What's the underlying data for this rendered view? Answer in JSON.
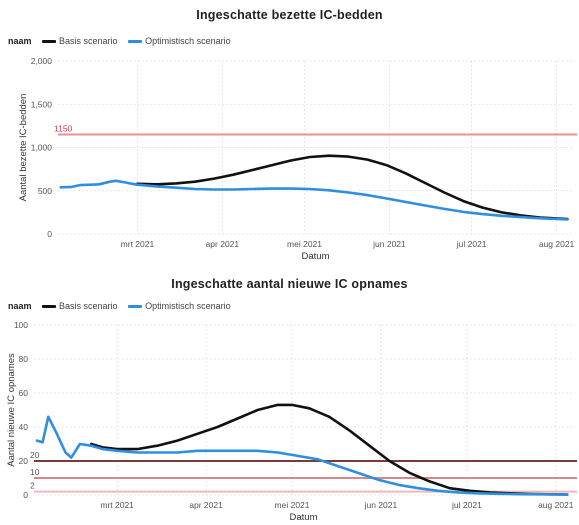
{
  "chart_data": [
    {
      "type": "line",
      "title": "Ingeschatte bezette IC-bedden",
      "legend_title": "naam",
      "legend_position": "top-left",
      "xlabel": "Datum",
      "ylabel": "Aantal bezette IC-bedden",
      "ylim": [
        0,
        2000
      ],
      "xlim": [
        "2021-01-31",
        "2021-08-07"
      ],
      "y_ticks": [
        {
          "value": 0,
          "label": "0"
        },
        {
          "value": 500,
          "label": "500"
        },
        {
          "value": 1000,
          "label": "1,000"
        },
        {
          "value": 1500,
          "label": "1,500"
        },
        {
          "value": 2000,
          "label": "2,000"
        }
      ],
      "x_ticks": [
        {
          "date": "2021-03-01",
          "label": "mrt 2021"
        },
        {
          "date": "2021-04-01",
          "label": "apr 2021"
        },
        {
          "date": "2021-05-01",
          "label": "mei 2021"
        },
        {
          "date": "2021-06-01",
          "label": "jun 2021"
        },
        {
          "date": "2021-07-01",
          "label": "jul 2021"
        },
        {
          "date": "2021-08-01",
          "label": "aug 2021"
        }
      ],
      "grid": true,
      "reference_lines": [
        {
          "value": 1150,
          "label": "1150",
          "color": "#e8918f",
          "label_color": "#c8385a"
        }
      ],
      "series": [
        {
          "name": "Basis scenario",
          "color": "#111111",
          "points": [
            [
              "2021-03-01",
              580
            ],
            [
              "2021-03-08",
              575
            ],
            [
              "2021-03-15",
              585
            ],
            [
              "2021-03-22",
              605
            ],
            [
              "2021-03-29",
              640
            ],
            [
              "2021-04-05",
              685
            ],
            [
              "2021-04-12",
              740
            ],
            [
              "2021-04-19",
              795
            ],
            [
              "2021-04-26",
              850
            ],
            [
              "2021-05-03",
              890
            ],
            [
              "2021-05-10",
              905
            ],
            [
              "2021-05-17",
              895
            ],
            [
              "2021-05-24",
              860
            ],
            [
              "2021-05-31",
              795
            ],
            [
              "2021-06-07",
              700
            ],
            [
              "2021-06-14",
              590
            ],
            [
              "2021-06-21",
              480
            ],
            [
              "2021-06-28",
              380
            ],
            [
              "2021-07-05",
              305
            ],
            [
              "2021-07-12",
              250
            ],
            [
              "2021-07-19",
              215
            ],
            [
              "2021-07-26",
              190
            ],
            [
              "2021-08-02",
              178
            ],
            [
              "2021-08-05",
              172
            ]
          ]
        },
        {
          "name": "Optimistisch scenario",
          "color": "#2e8fe0",
          "points": [
            [
              "2021-02-01",
              540
            ],
            [
              "2021-02-05",
              545
            ],
            [
              "2021-02-08",
              565
            ],
            [
              "2021-02-12",
              570
            ],
            [
              "2021-02-15",
              575
            ],
            [
              "2021-02-19",
              605
            ],
            [
              "2021-02-21",
              615
            ],
            [
              "2021-02-24",
              600
            ],
            [
              "2021-02-27",
              580
            ],
            [
              "2021-03-01",
              570
            ],
            [
              "2021-03-08",
              550
            ],
            [
              "2021-03-15",
              535
            ],
            [
              "2021-03-22",
              520
            ],
            [
              "2021-03-29",
              515
            ],
            [
              "2021-04-05",
              515
            ],
            [
              "2021-04-12",
              520
            ],
            [
              "2021-04-19",
              525
            ],
            [
              "2021-04-26",
              525
            ],
            [
              "2021-05-03",
              520
            ],
            [
              "2021-05-10",
              505
            ],
            [
              "2021-05-17",
              480
            ],
            [
              "2021-05-24",
              450
            ],
            [
              "2021-05-31",
              410
            ],
            [
              "2021-06-07",
              370
            ],
            [
              "2021-06-14",
              330
            ],
            [
              "2021-06-21",
              290
            ],
            [
              "2021-06-28",
              255
            ],
            [
              "2021-07-05",
              230
            ],
            [
              "2021-07-12",
              210
            ],
            [
              "2021-07-19",
              195
            ],
            [
              "2021-07-26",
              182
            ],
            [
              "2021-08-02",
              172
            ],
            [
              "2021-08-05",
              168
            ]
          ]
        }
      ]
    },
    {
      "type": "line",
      "title": "Ingeschatte aantal nieuwe IC opnames",
      "legend_title": "naam",
      "legend_position": "top-left",
      "xlabel": "Datum",
      "ylabel": "Aantal nieuwe IC opnames",
      "ylim": [
        0,
        100
      ],
      "xlim": [
        "2021-01-31",
        "2021-08-07"
      ],
      "y_ticks": [
        {
          "value": 0,
          "label": "0"
        },
        {
          "value": 20,
          "label": "20"
        },
        {
          "value": 40,
          "label": "40"
        },
        {
          "value": 60,
          "label": "60"
        },
        {
          "value": 80,
          "label": "80"
        },
        {
          "value": 100,
          "label": "100"
        }
      ],
      "x_ticks": [
        {
          "date": "2021-03-01",
          "label": "mrt 2021"
        },
        {
          "date": "2021-04-01",
          "label": "apr 2021"
        },
        {
          "date": "2021-05-01",
          "label": "mei 2021"
        },
        {
          "date": "2021-06-01",
          "label": "jun 2021"
        },
        {
          "date": "2021-07-01",
          "label": "jul 2021"
        },
        {
          "date": "2021-08-01",
          "label": "aug 2021"
        }
      ],
      "grid": true,
      "reference_lines": [
        {
          "value": 20,
          "label": "20",
          "color": "#7a3a3a",
          "label_color": "#555555"
        },
        {
          "value": 10,
          "label": "10",
          "color": "#d9868a",
          "label_color": "#555555"
        },
        {
          "value": 2,
          "label": "2",
          "color": "#f2b8bb",
          "label_color": "#555555"
        }
      ],
      "series": [
        {
          "name": "Basis scenario",
          "color": "#111111",
          "points": [
            [
              "2021-02-20",
              30
            ],
            [
              "2021-02-24",
              28
            ],
            [
              "2021-03-01",
              27
            ],
            [
              "2021-03-08",
              27
            ],
            [
              "2021-03-15",
              29
            ],
            [
              "2021-03-22",
              32
            ],
            [
              "2021-03-29",
              36
            ],
            [
              "2021-04-05",
              40
            ],
            [
              "2021-04-12",
              45
            ],
            [
              "2021-04-19",
              50
            ],
            [
              "2021-04-26",
              53
            ],
            [
              "2021-05-01",
              53
            ],
            [
              "2021-05-07",
              51
            ],
            [
              "2021-05-14",
              46
            ],
            [
              "2021-05-21",
              38
            ],
            [
              "2021-05-28",
              29
            ],
            [
              "2021-06-04",
              20
            ],
            [
              "2021-06-11",
              13
            ],
            [
              "2021-06-18",
              8
            ],
            [
              "2021-06-25",
              4
            ],
            [
              "2021-07-02",
              2.5
            ],
            [
              "2021-07-09",
              1.5
            ],
            [
              "2021-07-16",
              1
            ],
            [
              "2021-07-23",
              0.6
            ],
            [
              "2021-07-30",
              0.4
            ],
            [
              "2021-08-05",
              0.3
            ]
          ]
        },
        {
          "name": "Optimistisch scenario",
          "color": "#2e8fe0",
          "points": [
            [
              "2021-02-01",
              32
            ],
            [
              "2021-02-03",
              31
            ],
            [
              "2021-02-05",
              46
            ],
            [
              "2021-02-08",
              36
            ],
            [
              "2021-02-11",
              25
            ],
            [
              "2021-02-13",
              22
            ],
            [
              "2021-02-16",
              30
            ],
            [
              "2021-02-20",
              29
            ],
            [
              "2021-02-24",
              27
            ],
            [
              "2021-03-01",
              26
            ],
            [
              "2021-03-08",
              25
            ],
            [
              "2021-03-15",
              25
            ],
            [
              "2021-03-22",
              25
            ],
            [
              "2021-03-29",
              26
            ],
            [
              "2021-04-05",
              26
            ],
            [
              "2021-04-12",
              26
            ],
            [
              "2021-04-19",
              26
            ],
            [
              "2021-04-26",
              25
            ],
            [
              "2021-05-03",
              23
            ],
            [
              "2021-05-10",
              21
            ],
            [
              "2021-05-17",
              17
            ],
            [
              "2021-05-24",
              13
            ],
            [
              "2021-05-31",
              9
            ],
            [
              "2021-06-07",
              6
            ],
            [
              "2021-06-14",
              4
            ],
            [
              "2021-06-21",
              2.5
            ],
            [
              "2021-06-28",
              1.5
            ],
            [
              "2021-07-05",
              1
            ],
            [
              "2021-07-12",
              0.7
            ],
            [
              "2021-07-19",
              0.5
            ],
            [
              "2021-07-26",
              0.4
            ],
            [
              "2021-08-05",
              0.3
            ]
          ]
        }
      ]
    }
  ]
}
